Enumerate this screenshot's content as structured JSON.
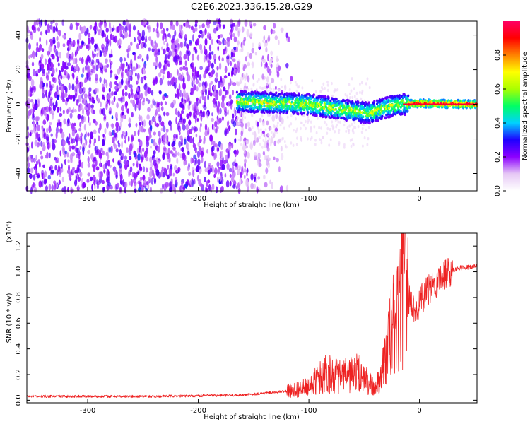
{
  "title": "C2E6.2023.336.15.28.G29",
  "chart_data": [
    {
      "type": "heatmap",
      "xlabel": "Height of straight line (km)",
      "ylabel": "Frequency (Hz)",
      "xlim": [
        -355,
        52
      ],
      "ylim": [
        -50,
        48
      ],
      "x_ticks": [
        -300,
        -200,
        -100,
        0
      ],
      "y_ticks": [
        -40,
        -20,
        0,
        20,
        40
      ],
      "grid": false,
      "colorbar": {
        "label": "Normalized spectral amplitude",
        "range": [
          0,
          1
        ],
        "ticks": [
          0.0,
          0.2,
          0.4,
          0.6,
          0.8
        ],
        "colormap": [
          "#ffffff",
          "#e6c8f5",
          "#8c00ff",
          "#1e00ff",
          "#00d2ff",
          "#00ff64",
          "#aaff00",
          "#ffff00",
          "#ff8200",
          "#ff0000",
          "#ff0064"
        ]
      },
      "features": {
        "noise_region_x": [
          -355,
          -165
        ],
        "fading_noise_x": [
          -165,
          -120
        ],
        "signal_track": [
          {
            "x": -165,
            "f": 1.5
          },
          {
            "x": -140,
            "f": 1
          },
          {
            "x": -120,
            "f": 0.5
          },
          {
            "x": -100,
            "f": 0
          },
          {
            "x": -80,
            "f": -2
          },
          {
            "x": -60,
            "f": -4
          },
          {
            "x": -45,
            "f": -5
          },
          {
            "x": -35,
            "f": -3
          },
          {
            "x": -25,
            "f": -1
          },
          {
            "x": -15,
            "f": 0
          },
          {
            "x": 0,
            "f": 0.5
          },
          {
            "x": 52,
            "f": 0
          }
        ]
      }
    },
    {
      "type": "line",
      "xlabel": "Height of straight line (km)",
      "ylabel": "SNR (10 * v/v)",
      "y_multiplier": "(x10⁴)",
      "xlim": [
        -355,
        52
      ],
      "ylim": [
        -0.02,
        1.3
      ],
      "x_ticks": [
        -300,
        -200,
        -100,
        0
      ],
      "y_ticks": [
        0.0,
        0.2,
        0.4,
        0.6,
        0.8,
        1.0,
        1.2
      ],
      "color": "#ee2222",
      "envelope": [
        {
          "x": -355,
          "y": 0.03
        },
        {
          "x": -240,
          "y": 0.03
        },
        {
          "x": -160,
          "y": 0.04
        },
        {
          "x": -120,
          "y": 0.07
        },
        {
          "x": -100,
          "y": 0.1
        },
        {
          "x": -85,
          "y": 0.22
        },
        {
          "x": -70,
          "y": 0.18
        },
        {
          "x": -55,
          "y": 0.22
        },
        {
          "x": -40,
          "y": 0.08
        },
        {
          "x": -30,
          "y": 0.35
        },
        {
          "x": -25,
          "y": 0.55
        },
        {
          "x": -20,
          "y": 0.6
        },
        {
          "x": -15,
          "y": 0.9
        },
        {
          "x": -5,
          "y": 0.7
        },
        {
          "x": 5,
          "y": 0.82
        },
        {
          "x": 15,
          "y": 0.92
        },
        {
          "x": 25,
          "y": 1.0
        },
        {
          "x": 35,
          "y": 1.03
        },
        {
          "x": 52,
          "y": 1.04
        }
      ],
      "peak": {
        "x": -13,
        "y": 1.3
      }
    }
  ]
}
